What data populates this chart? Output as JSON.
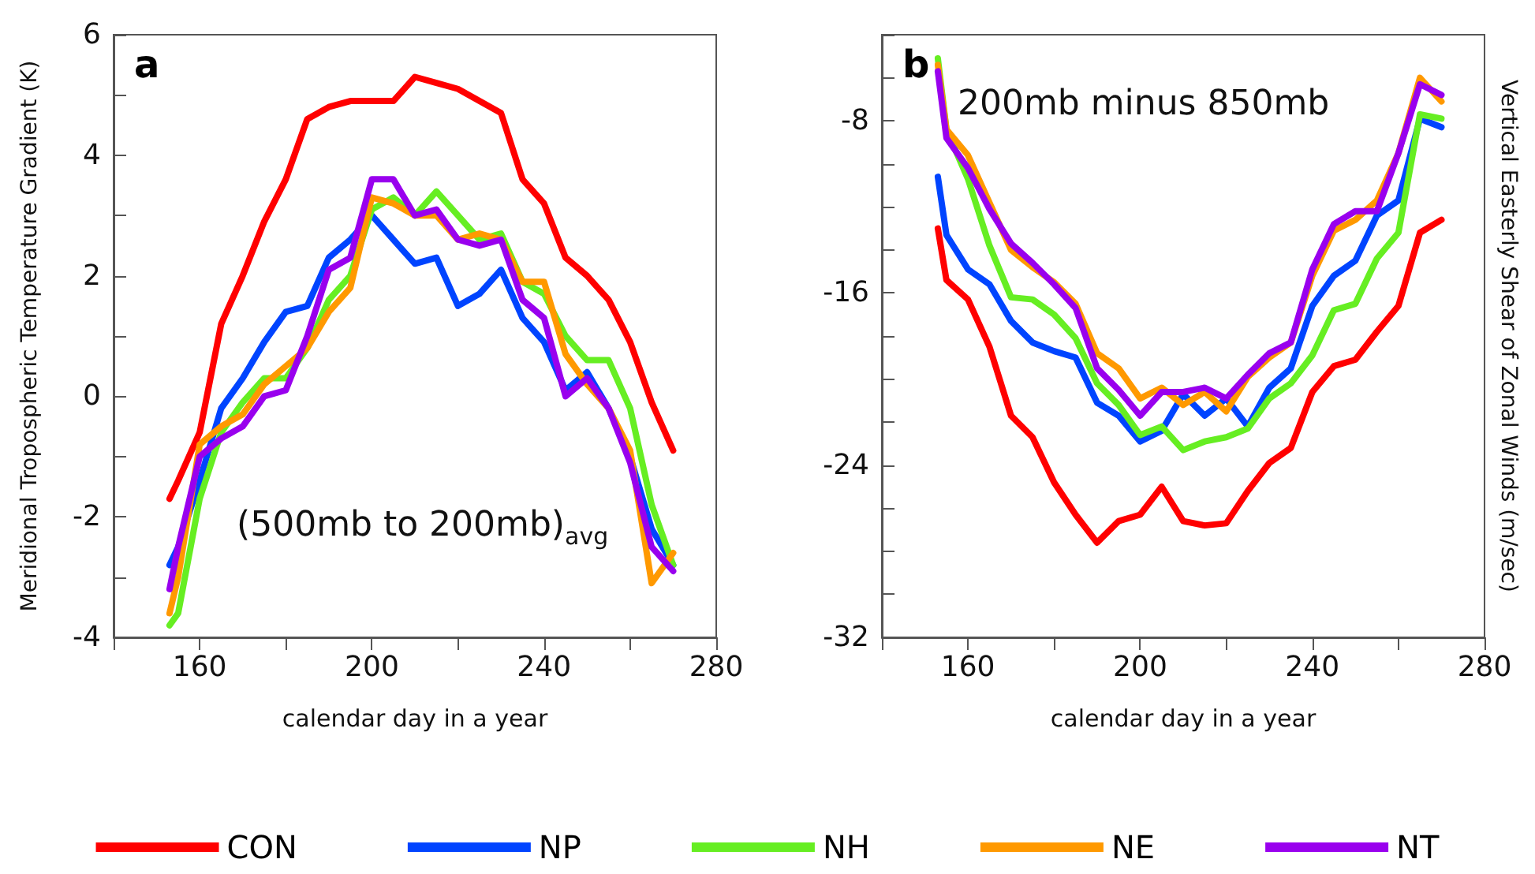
{
  "chart_data": [
    {
      "type": "line",
      "title": "a",
      "annotations": [
        "(500mb to 200mb)$_{avg}$"
      ],
      "xlabel": "calendar day in a year",
      "ylabel": "Meridional Tropospheric Temperature Gradient (K)",
      "x": [
        153,
        155,
        160,
        165,
        170,
        175,
        180,
        185,
        190,
        195,
        200,
        205,
        210,
        215,
        220,
        225,
        230,
        235,
        240,
        245,
        250,
        255,
        260,
        265,
        270
      ],
      "xlim": [
        140,
        280
      ],
      "xticks": [
        {
          "value": 140,
          "label": null
        },
        160,
        {
          "value": 180,
          "label": null
        },
        200,
        {
          "value": 220,
          "label": null
        },
        240,
        {
          "value": 260,
          "label": null
        },
        280
      ],
      "ylim": [
        -4,
        6
      ],
      "yticks": [
        -4,
        {
          "value": -3,
          "label": null
        },
        -2,
        {
          "value": -1,
          "label": null
        },
        0,
        {
          "value": 1,
          "label": null
        },
        2,
        {
          "value": 3,
          "label": null
        },
        4,
        {
          "value": 5,
          "label": null
        },
        6
      ],
      "legend": "bottom",
      "marker": "none",
      "series": [
        {
          "name": "CON",
          "color": "#ff0000",
          "values": [
            -1.7,
            -1.4,
            -0.6,
            1.2,
            2.0,
            2.9,
            3.6,
            4.6,
            4.8,
            4.9,
            4.9,
            4.9,
            5.3,
            5.2,
            5.1,
            4.9,
            4.7,
            3.6,
            3.2,
            2.3,
            2.0,
            1.6,
            0.9,
            -0.1,
            -0.9
          ]
        },
        {
          "name": "NP",
          "color": "#0044ff",
          "values": [
            -2.8,
            -2.5,
            -1.4,
            -0.2,
            0.3,
            0.9,
            1.4,
            1.5,
            2.3,
            2.6,
            3.0,
            2.6,
            2.2,
            2.3,
            1.5,
            1.7,
            2.1,
            1.3,
            0.9,
            0.1,
            0.4,
            -0.2,
            -1.0,
            -2.2,
            -2.8
          ]
        },
        {
          "name": "NH",
          "color": "#66ee22",
          "values": [
            -3.8,
            -3.6,
            -1.7,
            -0.6,
            -0.1,
            0.3,
            0.3,
            0.8,
            1.6,
            2.0,
            3.1,
            3.3,
            3.0,
            3.4,
            3.0,
            2.6,
            2.7,
            1.9,
            1.7,
            1.0,
            0.6,
            0.6,
            -0.2,
            -1.8,
            -2.8
          ]
        },
        {
          "name": "NE",
          "color": "#ff9900",
          "values": [
            -3.6,
            -3.0,
            -0.8,
            -0.5,
            -0.3,
            0.2,
            0.5,
            0.8,
            1.4,
            1.8,
            3.3,
            3.2,
            3.0,
            3.0,
            2.6,
            2.7,
            2.6,
            1.9,
            1.9,
            0.7,
            0.2,
            -0.2,
            -0.9,
            -3.1,
            -2.6
          ]
        },
        {
          "name": "NT",
          "color": "#9900ee",
          "values": [
            -3.2,
            -2.5,
            -1.0,
            -0.7,
            -0.5,
            0.0,
            0.1,
            1.0,
            2.1,
            2.3,
            3.6,
            3.6,
            3.0,
            3.1,
            2.6,
            2.5,
            2.6,
            1.6,
            1.3,
            0.0,
            0.3,
            -0.2,
            -1.1,
            -2.5,
            -2.9
          ]
        }
      ]
    },
    {
      "type": "line",
      "title": "b",
      "annotations": [
        "200mb minus 850mb"
      ],
      "xlabel": "calendar day in a year",
      "ylabel": "Vertical Easterly Shear of Zonal Winds (m/sec)",
      "x": [
        153,
        155,
        160,
        165,
        170,
        175,
        180,
        185,
        190,
        195,
        200,
        205,
        210,
        215,
        220,
        225,
        230,
        235,
        240,
        245,
        250,
        255,
        260,
        265,
        270
      ],
      "xlim": [
        140,
        280
      ],
      "xticks": [
        {
          "value": 140,
          "label": null
        },
        160,
        {
          "value": 180,
          "label": null
        },
        200,
        {
          "value": 220,
          "label": null
        },
        240,
        {
          "value": 260,
          "label": null
        },
        280
      ],
      "ylim": [
        -32,
        -4
      ],
      "yticks": [
        -32,
        {
          "value": -30,
          "label": null
        },
        {
          "value": -28,
          "label": null
        },
        {
          "value": -26,
          "label": null
        },
        -24,
        {
          "value": -22,
          "label": null
        },
        {
          "value": -20,
          "label": null
        },
        {
          "value": -18,
          "label": null
        },
        -16,
        {
          "value": -14,
          "label": null
        },
        {
          "value": -12,
          "label": null
        },
        {
          "value": -10,
          "label": null
        },
        -8,
        {
          "value": -6,
          "label": null
        },
        {
          "value": -4,
          "label": null
        }
      ],
      "marker": "none",
      "series": [
        {
          "color": "#ff0000",
          "values": [
            -13.0,
            -15.4,
            -16.3,
            -18.5,
            -21.7,
            -22.7,
            -24.8,
            -26.3,
            -27.6,
            -26.6,
            -26.3,
            -25.0,
            -26.6,
            -26.8,
            -26.7,
            -25.2,
            -23.9,
            -23.2,
            -20.6,
            -19.4,
            -19.1,
            -17.8,
            -16.6,
            -13.2,
            -12.6
          ]
        },
        {
          "color": "#0044ff",
          "values": [
            -10.6,
            -13.3,
            -14.9,
            -15.6,
            -17.3,
            -18.3,
            -18.7,
            -19.0,
            -21.1,
            -21.7,
            -22.9,
            -22.4,
            -20.7,
            -21.7,
            -20.9,
            -22.2,
            -20.4,
            -19.5,
            -16.6,
            -15.2,
            -14.5,
            -12.4,
            -11.7,
            -7.9,
            -8.3
          ]
        },
        {
          "color": "#66ee22",
          "values": [
            -5.1,
            -8.4,
            -10.7,
            -13.8,
            -16.2,
            -16.3,
            -17.0,
            -18.1,
            -20.2,
            -21.2,
            -22.6,
            -22.2,
            -23.3,
            -22.9,
            -22.7,
            -22.3,
            -20.9,
            -20.2,
            -18.9,
            -16.8,
            -16.5,
            -14.4,
            -13.2,
            -7.7,
            -7.9
          ]
        },
        {
          "color": "#ff9900",
          "values": [
            -5.4,
            -8.4,
            -9.6,
            -11.8,
            -14.0,
            -14.8,
            -15.5,
            -16.5,
            -18.8,
            -19.5,
            -20.9,
            -20.4,
            -21.2,
            -20.6,
            -21.5,
            -19.9,
            -19.0,
            -18.3,
            -15.2,
            -13.1,
            -12.6,
            -11.7,
            -9.5,
            -6.0,
            -7.1
          ]
        },
        {
          "color": "#9900ee",
          "values": [
            -5.7,
            -8.8,
            -10.2,
            -12.1,
            -13.7,
            -14.6,
            -15.6,
            -16.7,
            -19.5,
            -20.5,
            -21.7,
            -20.6,
            -20.6,
            -20.4,
            -20.9,
            -19.8,
            -18.8,
            -18.3,
            -14.9,
            -12.8,
            -12.2,
            -12.2,
            -9.5,
            -6.3,
            -6.8
          ]
        }
      ]
    }
  ]
}
